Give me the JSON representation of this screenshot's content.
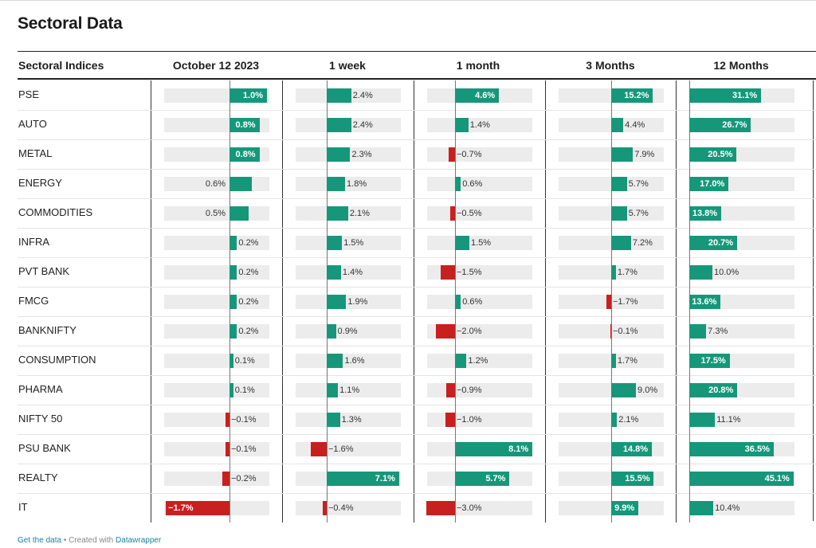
{
  "title": "Sectoral Data",
  "footer": {
    "get_data": "Get the data",
    "separator": " • Created with ",
    "created_with": "Datawrapper"
  },
  "colors": {
    "positive": "#16977a",
    "negative": "#c8201f",
    "track": "#ececec"
  },
  "chart_data": {
    "type": "table",
    "row_header": "Sectoral Indices",
    "columns": [
      "October 12 2023",
      "1 week",
      "1 month",
      "3 Months",
      "12 Months"
    ],
    "rows": [
      {
        "name": "PSE",
        "values": [
          1.0,
          2.4,
          4.6,
          15.2,
          31.1
        ],
        "labels": [
          "1.0%",
          "2.4%",
          "4.6%",
          "15.2%",
          "31.1%"
        ]
      },
      {
        "name": "AUTO",
        "values": [
          0.8,
          2.4,
          1.4,
          4.4,
          26.7
        ],
        "labels": [
          "0.8%",
          "2.4%",
          "1.4%",
          "4.4%",
          "26.7%"
        ]
      },
      {
        "name": "METAL",
        "values": [
          0.8,
          2.3,
          -0.7,
          7.9,
          20.5
        ],
        "labels": [
          "0.8%",
          "2.3%",
          "−0.7%",
          "7.9%",
          "20.5%"
        ]
      },
      {
        "name": "ENERGY",
        "values": [
          0.6,
          1.8,
          0.6,
          5.7,
          17.0
        ],
        "labels": [
          "0.6%",
          "1.8%",
          "0.6%",
          "5.7%",
          "17.0%"
        ]
      },
      {
        "name": "COMMODITIES",
        "values": [
          0.5,
          2.1,
          -0.5,
          5.7,
          13.8
        ],
        "labels": [
          "0.5%",
          "2.1%",
          "−0.5%",
          "5.7%",
          "13.8%"
        ]
      },
      {
        "name": "INFRA",
        "values": [
          0.2,
          1.5,
          1.5,
          7.2,
          20.7
        ],
        "labels": [
          "0.2%",
          "1.5%",
          "1.5%",
          "7.2%",
          "20.7%"
        ]
      },
      {
        "name": "PVT BANK",
        "values": [
          0.2,
          1.4,
          -1.5,
          1.7,
          10.0
        ],
        "labels": [
          "0.2%",
          "1.4%",
          "−1.5%",
          "1.7%",
          "10.0%"
        ]
      },
      {
        "name": "FMCG",
        "values": [
          0.2,
          1.9,
          0.6,
          -1.7,
          13.6
        ],
        "labels": [
          "0.2%",
          "1.9%",
          "0.6%",
          "−1.7%",
          "13.6%"
        ]
      },
      {
        "name": "BANKNIFTY",
        "values": [
          0.2,
          0.9,
          -2.0,
          -0.1,
          7.3
        ],
        "labels": [
          "0.2%",
          "0.9%",
          "−2.0%",
          "−0.1%",
          "7.3%"
        ]
      },
      {
        "name": "CONSUMPTION",
        "values": [
          0.1,
          1.6,
          1.2,
          1.7,
          17.5
        ],
        "labels": [
          "0.1%",
          "1.6%",
          "1.2%",
          "1.7%",
          "17.5%"
        ]
      },
      {
        "name": "PHARMA",
        "values": [
          0.1,
          1.1,
          -0.9,
          9.0,
          20.8
        ],
        "labels": [
          "0.1%",
          "1.1%",
          "−0.9%",
          "9.0%",
          "20.8%"
        ]
      },
      {
        "name": "NIFTY 50",
        "values": [
          -0.1,
          1.3,
          -1.0,
          2.1,
          11.1
        ],
        "labels": [
          "−0.1%",
          "1.3%",
          "−1.0%",
          "2.1%",
          "11.1%"
        ]
      },
      {
        "name": "PSU BANK",
        "values": [
          -0.1,
          -1.6,
          8.1,
          14.8,
          36.5
        ],
        "labels": [
          "−0.1%",
          "−1.6%",
          "8.1%",
          "14.8%",
          "36.5%"
        ]
      },
      {
        "name": "REALTY",
        "values": [
          -0.2,
          7.1,
          5.7,
          15.5,
          45.1
        ],
        "labels": [
          "−0.2%",
          "7.1%",
          "5.7%",
          "15.5%",
          "45.1%"
        ]
      },
      {
        "name": "IT",
        "values": [
          -1.7,
          -0.4,
          -3.0,
          9.9,
          10.4
        ],
        "labels": [
          "−1.7%",
          "−0.4%",
          "−3.0%",
          "9.9%",
          "10.4%"
        ]
      }
    ]
  }
}
